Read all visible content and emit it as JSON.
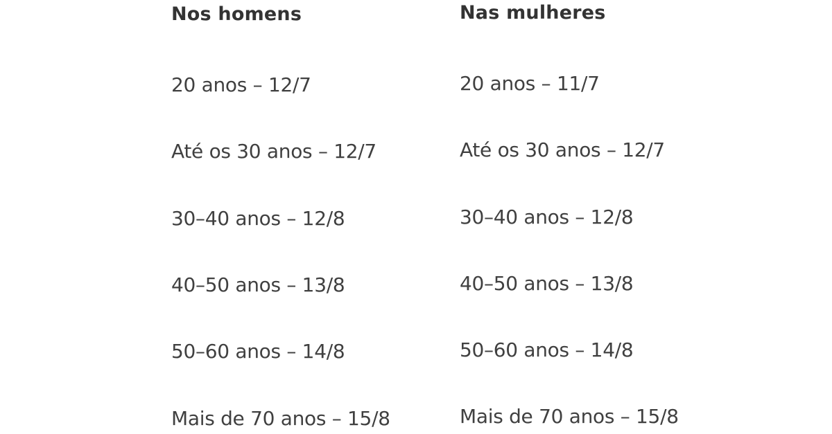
{
  "columns": [
    {
      "title": "Nos homens",
      "entries": [
        "20 anos – 12/7",
        "Até os 30 anos – 12/7",
        "30–40 anos – 12/8",
        "40–50 anos – 13/8",
        "50–60 anos – 14/8",
        "Mais de 70 anos – 15/8"
      ]
    },
    {
      "title": "Nas mulheres",
      "entries": [
        "20 anos – 11/7",
        "Até os 30 anos – 12/7",
        "30–40 anos – 12/8",
        "40–50 anos – 13/8",
        "50–60 anos – 14/8",
        "Mais de 70 anos – 15/8"
      ]
    }
  ]
}
